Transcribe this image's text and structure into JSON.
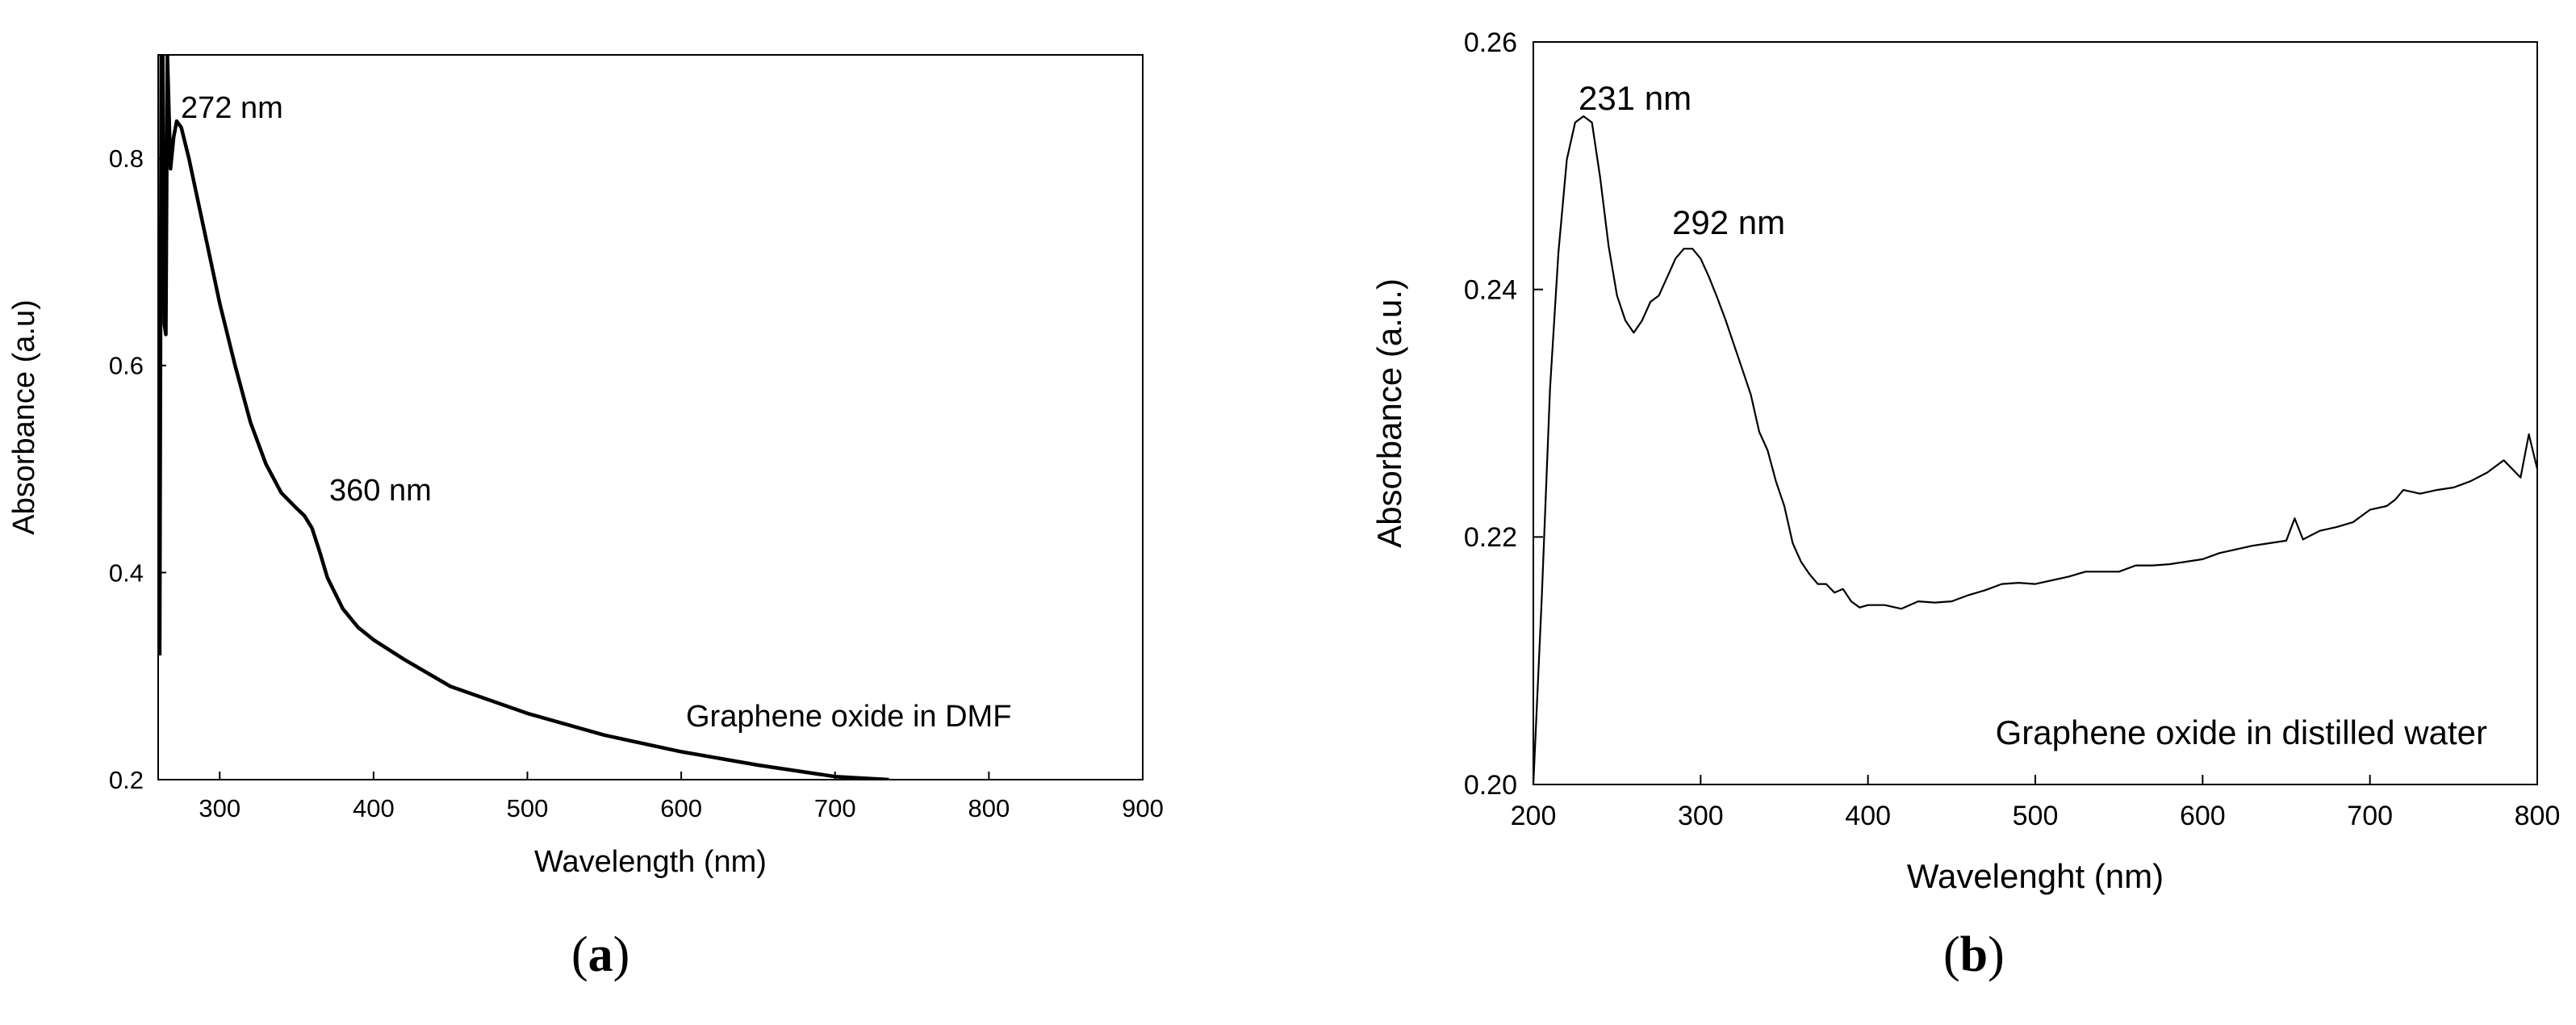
{
  "chart_data": [
    {
      "type": "line",
      "panel_label": "a",
      "title": "",
      "xlabel": "Wavelength (nm)",
      "ylabel": "Absorbance (a.u)",
      "xlim": [
        260,
        900
      ],
      "ylim": [
        0.2,
        0.9
      ],
      "xticks": [
        300,
        400,
        500,
        600,
        700,
        800,
        900
      ],
      "yticks": [
        0.2,
        0.4,
        0.6,
        0.8
      ],
      "grid": false,
      "legend": "none",
      "annotations": [
        "272 nm",
        "360 nm",
        "Graphene oxide in DMF"
      ],
      "series": [
        {
          "x": [
            261,
            262,
            263,
            264,
            265,
            266,
            268,
            270,
            272,
            275,
            280,
            290,
            300,
            310,
            320,
            330,
            340,
            350,
            355,
            360,
            365,
            370,
            380,
            390,
            400,
            420,
            450,
            500,
            550,
            600,
            650,
            700,
            735
          ],
          "y": [
            0.32,
            0.9,
            0.9,
            0.64,
            0.63,
            0.9,
            0.79,
            0.82,
            0.836,
            0.83,
            0.8,
            0.73,
            0.66,
            0.6,
            0.545,
            0.505,
            0.477,
            0.462,
            0.455,
            0.443,
            0.42,
            0.395,
            0.365,
            0.347,
            0.335,
            0.316,
            0.29,
            0.264,
            0.243,
            0.227,
            0.214,
            0.203,
            0.2
          ]
        }
      ]
    },
    {
      "type": "line",
      "panel_label": "b",
      "title": "",
      "xlabel": "Wavelenght (nm)",
      "ylabel": "Absorbance (a.u.)",
      "xlim": [
        200,
        800
      ],
      "ylim": [
        0.2,
        0.26
      ],
      "xticks": [
        200,
        300,
        400,
        500,
        600,
        700,
        800
      ],
      "yticks": [
        0.2,
        0.22,
        0.24,
        0.26
      ],
      "grid": false,
      "legend": "none",
      "annotations": [
        "231 nm",
        "292 nm",
        "Graphene oxide in distilled water"
      ],
      "series": [
        {
          "x": [
            200,
            205,
            210,
            215,
            220,
            225,
            230,
            235,
            240,
            245,
            250,
            255,
            260,
            265,
            270,
            275,
            280,
            285,
            290,
            295,
            300,
            305,
            310,
            315,
            320,
            325,
            330,
            335,
            340,
            345,
            350,
            355,
            360,
            365,
            370,
            375,
            380,
            385,
            390,
            395,
            400,
            410,
            420,
            430,
            440,
            450,
            460,
            470,
            480,
            490,
            500,
            510,
            520,
            530,
            540,
            550,
            560,
            570,
            580,
            590,
            600,
            610,
            620,
            630,
            640,
            650,
            655,
            660,
            670,
            680,
            690,
            700,
            710,
            715,
            720,
            730,
            740,
            750,
            760,
            770,
            780,
            790,
            795,
            800
          ],
          "y": [
            0.2,
            0.215,
            0.232,
            0.243,
            0.2505,
            0.2535,
            0.254,
            0.2535,
            0.249,
            0.2435,
            0.2395,
            0.2375,
            0.2365,
            0.2375,
            0.239,
            0.2395,
            0.241,
            0.2425,
            0.2433,
            0.2433,
            0.2425,
            0.241,
            0.2393,
            0.2375,
            0.2355,
            0.2335,
            0.2315,
            0.2285,
            0.227,
            0.2245,
            0.2225,
            0.2195,
            0.218,
            0.217,
            0.2162,
            0.2162,
            0.2155,
            0.2158,
            0.2148,
            0.2143,
            0.2145,
            0.2145,
            0.2142,
            0.2148,
            0.2147,
            0.2148,
            0.2153,
            0.2157,
            0.2162,
            0.2163,
            0.2162,
            0.2165,
            0.2168,
            0.2172,
            0.2172,
            0.2172,
            0.2177,
            0.2177,
            0.2178,
            0.218,
            0.2182,
            0.2187,
            0.219,
            0.2193,
            0.2195,
            0.2197,
            0.2215,
            0.2198,
            0.2205,
            0.2208,
            0.2212,
            0.2222,
            0.2225,
            0.223,
            0.2238,
            0.2235,
            0.2238,
            0.224,
            0.2245,
            0.2252,
            0.2262,
            0.2248,
            0.2283,
            0.2255
          ]
        }
      ]
    }
  ]
}
